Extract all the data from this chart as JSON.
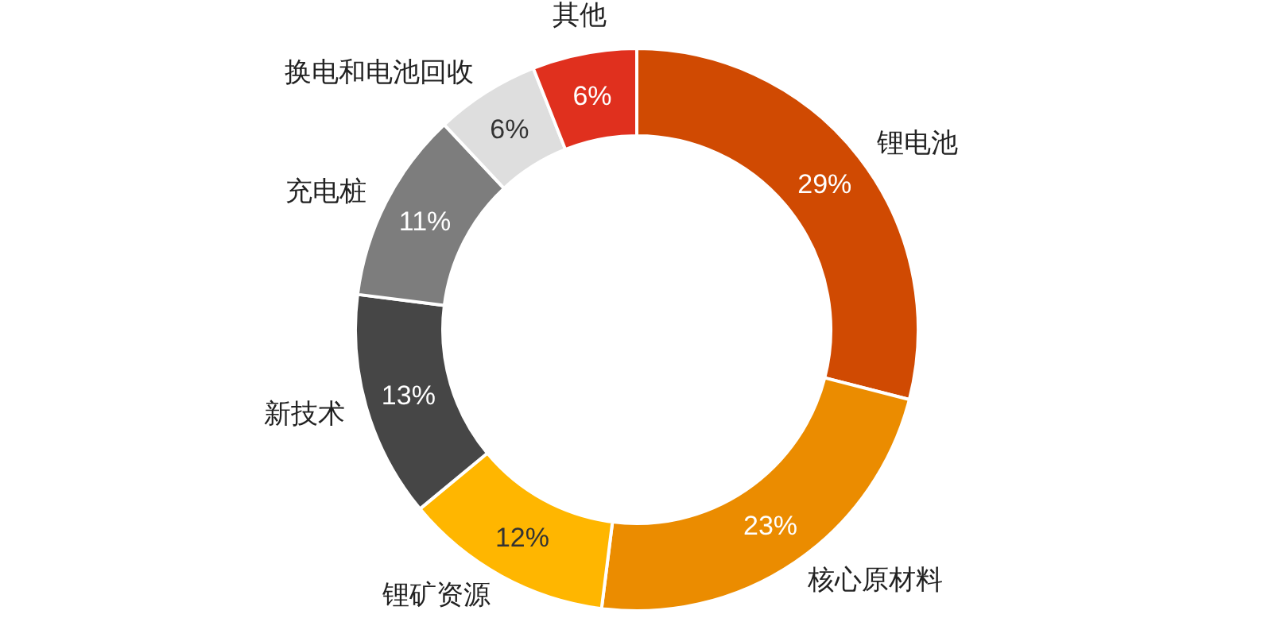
{
  "chart_data": {
    "type": "donut",
    "categories": [
      "锂电池",
      "核心原材料",
      "锂矿资源",
      "新技术",
      "充电桩",
      "换电和电池回收",
      "其他"
    ],
    "values": [
      29,
      23,
      12,
      13,
      11,
      6,
      6
    ],
    "colors": [
      "#d04a02",
      "#eb8c00",
      "#ffb600",
      "#464646",
      "#7d7d7d",
      "#dedede",
      "#e0301e"
    ],
    "value_labels": [
      "29%",
      "23%",
      "12%",
      "13%",
      "11%",
      "6%",
      "6%"
    ]
  }
}
